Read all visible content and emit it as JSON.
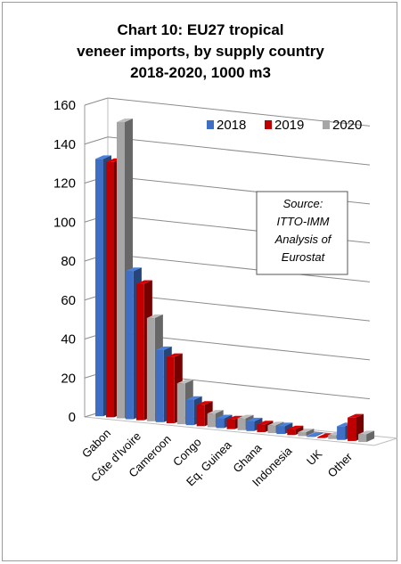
{
  "title_lines": [
    "Chart 10: EU27 tropical",
    "veneer imports, by supply country",
    "2018-2020, 1000 m3"
  ],
  "source_note": [
    "Source:",
    "ITTO-IMM",
    "Analysis of",
    "Eurostat"
  ],
  "colors": {
    "2018": "#3e6fc4",
    "2019": "#c00000",
    "2020": "#a6a6a6"
  },
  "chart_data": {
    "type": "bar",
    "title": "Chart 10: EU27 tropical veneer imports, by supply country 2018-2020, 1000 m3",
    "categories": [
      "Gabon",
      "Côte d'Ivoire",
      "Cameroon",
      "Congo",
      "Eq. Guinea",
      "Ghana",
      "Indonesia",
      "UK",
      "Other"
    ],
    "series": [
      {
        "name": "2018",
        "values": [
          132,
          76,
          37,
          13,
          5,
          5,
          4,
          0.5,
          7
        ]
      },
      {
        "name": "2019",
        "values": [
          131,
          70,
          34,
          11,
          5,
          4,
          3,
          0.5,
          12
        ]
      },
      {
        "name": "2020",
        "values": [
          152,
          53,
          21,
          7,
          6,
          4,
          2,
          2,
          4
        ]
      }
    ],
    "ylim": [
      0,
      160
    ],
    "yticks": [
      0,
      20,
      40,
      60,
      80,
      100,
      120,
      140,
      160
    ],
    "grid": true,
    "legend": "top-right"
  }
}
